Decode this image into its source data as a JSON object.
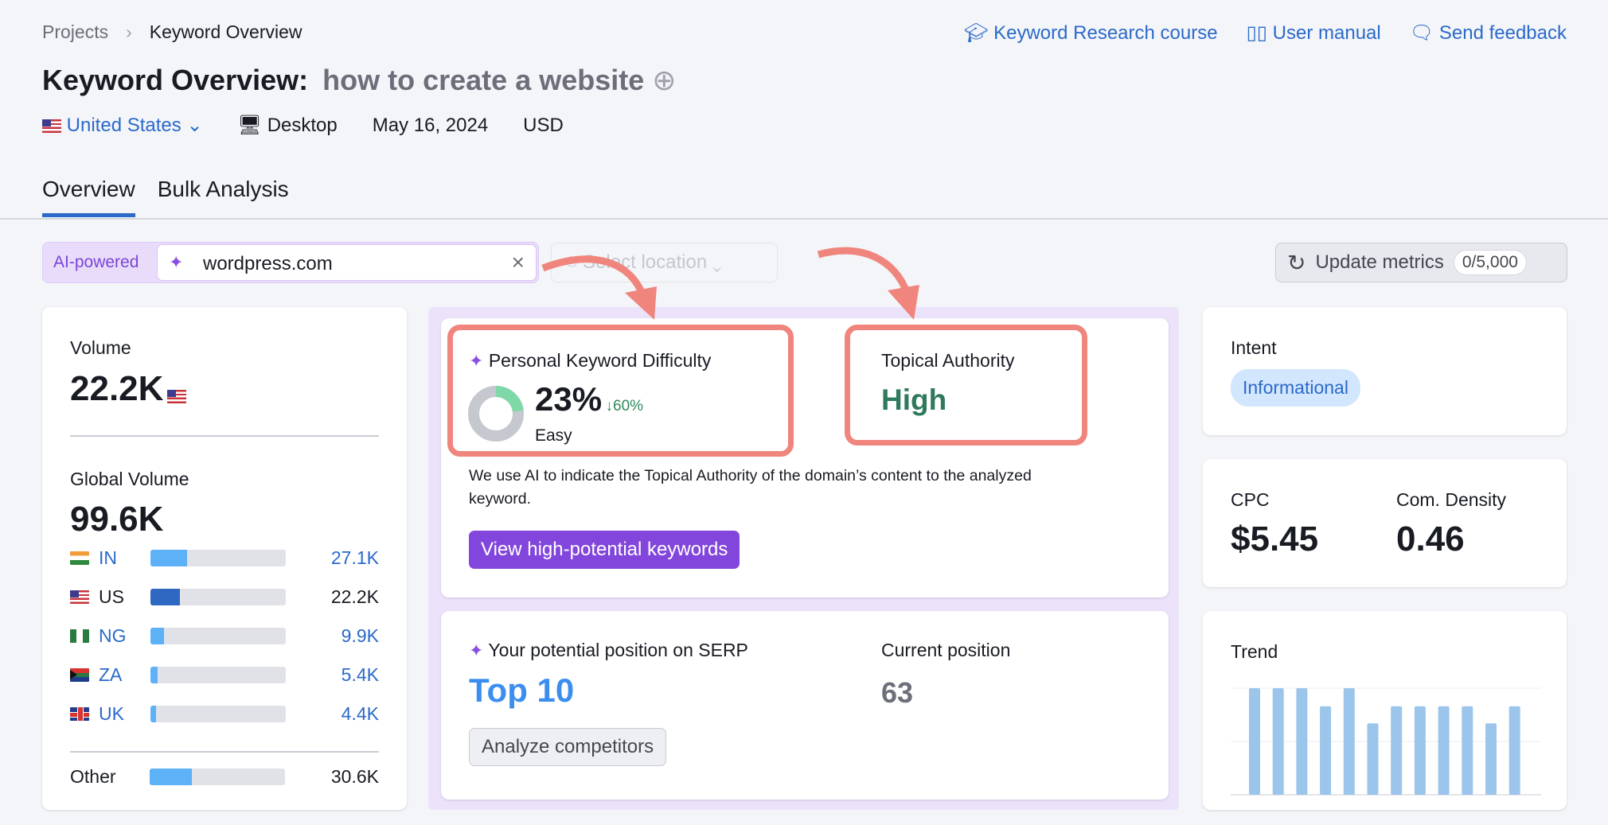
{
  "breadcrumb": {
    "items": [
      "Projects",
      "Keyword Overview"
    ]
  },
  "header_links": [
    {
      "label": "Keyword Research course",
      "icon": "graduation-cap-icon"
    },
    {
      "label": "User manual",
      "icon": "book-icon"
    },
    {
      "label": "Send feedback",
      "icon": "chat-bubble-icon"
    }
  ],
  "title": {
    "prefix": "Keyword Overview:",
    "keyword": "how to create a website"
  },
  "meta": {
    "country": "United States",
    "device": "Desktop",
    "date": "May 16, 2024",
    "currency": "USD"
  },
  "tabs": [
    {
      "label": "Overview",
      "active": true
    },
    {
      "label": "Bulk Analysis",
      "active": false
    }
  ],
  "search": {
    "badge": "AI-powered",
    "value": "wordpress.com",
    "location_placeholder": "Select location"
  },
  "update": {
    "label": "Update metrics",
    "count": "0/5,000"
  },
  "volume": {
    "label": "Volume",
    "value": "22.2K"
  },
  "global": {
    "label": "Global Volume",
    "value": "99.6K",
    "countries": [
      {
        "code": "IN",
        "value": "27.1K",
        "share": 27,
        "link": true
      },
      {
        "code": "US",
        "value": "22.2K",
        "share": 22,
        "link": false
      },
      {
        "code": "NG",
        "value": "9.9K",
        "share": 10,
        "link": true
      },
      {
        "code": "ZA",
        "value": "5.4K",
        "share": 5,
        "link": true
      },
      {
        "code": "UK",
        "value": "4.4K",
        "share": 4,
        "link": true
      }
    ],
    "other": {
      "label": "Other",
      "value": "30.6K",
      "share": 31
    }
  },
  "pkd": {
    "label": "Personal Keyword Difficulty",
    "value": "23%",
    "change": "↓60%",
    "level": "Easy",
    "percent": 23
  },
  "topical": {
    "label": "Topical Authority",
    "value": "High"
  },
  "ai_note": "We use AI to indicate the Topical Authority of the domain’s content to the analyzed keyword.",
  "view_button": "View high-potential keywords",
  "serp": {
    "label": "Your potential position on SERP",
    "value": "Top 10",
    "current_label": "Current position",
    "current_value": "63",
    "button": "Analyze competitors"
  },
  "intent": {
    "label": "Intent",
    "value": "Informational"
  },
  "cpc": {
    "label": "CPC",
    "value": "$5.45"
  },
  "density": {
    "label": "Com. Density",
    "value": "0.46"
  },
  "trend": {
    "label": "Trend"
  },
  "chart_data": {
    "type": "bar",
    "title": "Trend",
    "values": [
      100,
      100,
      100,
      83,
      100,
      67,
      83,
      83,
      83,
      83,
      67,
      83
    ],
    "ylim": [
      0,
      100
    ]
  },
  "colors": {
    "accent": "#2b6ac9",
    "annotation": "#ef857d",
    "ai_purple": "#8a4fe0",
    "high_green": "#2f7a5a"
  }
}
